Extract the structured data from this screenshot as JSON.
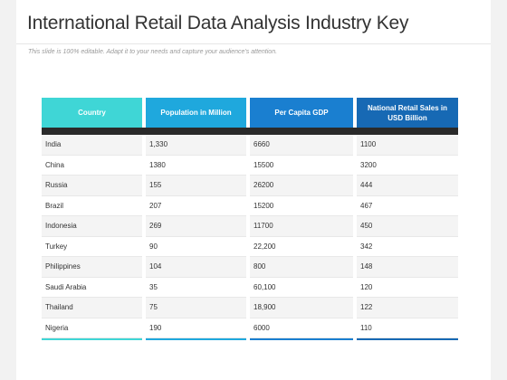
{
  "slide": {
    "title": "International Retail Data Analysis Industry Key",
    "subtitle": "This slide is 100% editable. Adapt it to your needs and capture your audience's attention."
  },
  "table": {
    "headers": [
      {
        "label": "Country",
        "color": "#3fd6d6"
      },
      {
        "label": "Population in Million",
        "color": "#1fa8dd"
      },
      {
        "label": "Per Capita GDP",
        "color": "#1a7fd0"
      },
      {
        "label": "National Retail Sales in USD Billion",
        "color": "#1769b4"
      }
    ],
    "rows": [
      [
        "India",
        "1,330",
        "6660",
        "1100"
      ],
      [
        "China",
        "1380",
        "15500",
        "3200"
      ],
      [
        "Russia",
        "155",
        "26200",
        "444"
      ],
      [
        "Brazil",
        "207",
        "15200",
        "467"
      ],
      [
        "Indonesia",
        "269",
        "11700",
        "450"
      ],
      [
        "Turkey",
        "90",
        "22,200",
        "342"
      ],
      [
        "Philippines",
        "104",
        "800",
        "148"
      ],
      [
        "Saudi Arabia",
        "35",
        "60,100",
        "120"
      ],
      [
        "Thailand",
        "75",
        "18,900",
        "122"
      ],
      [
        "Nigeria",
        "190",
        "6000",
        "110"
      ]
    ]
  }
}
